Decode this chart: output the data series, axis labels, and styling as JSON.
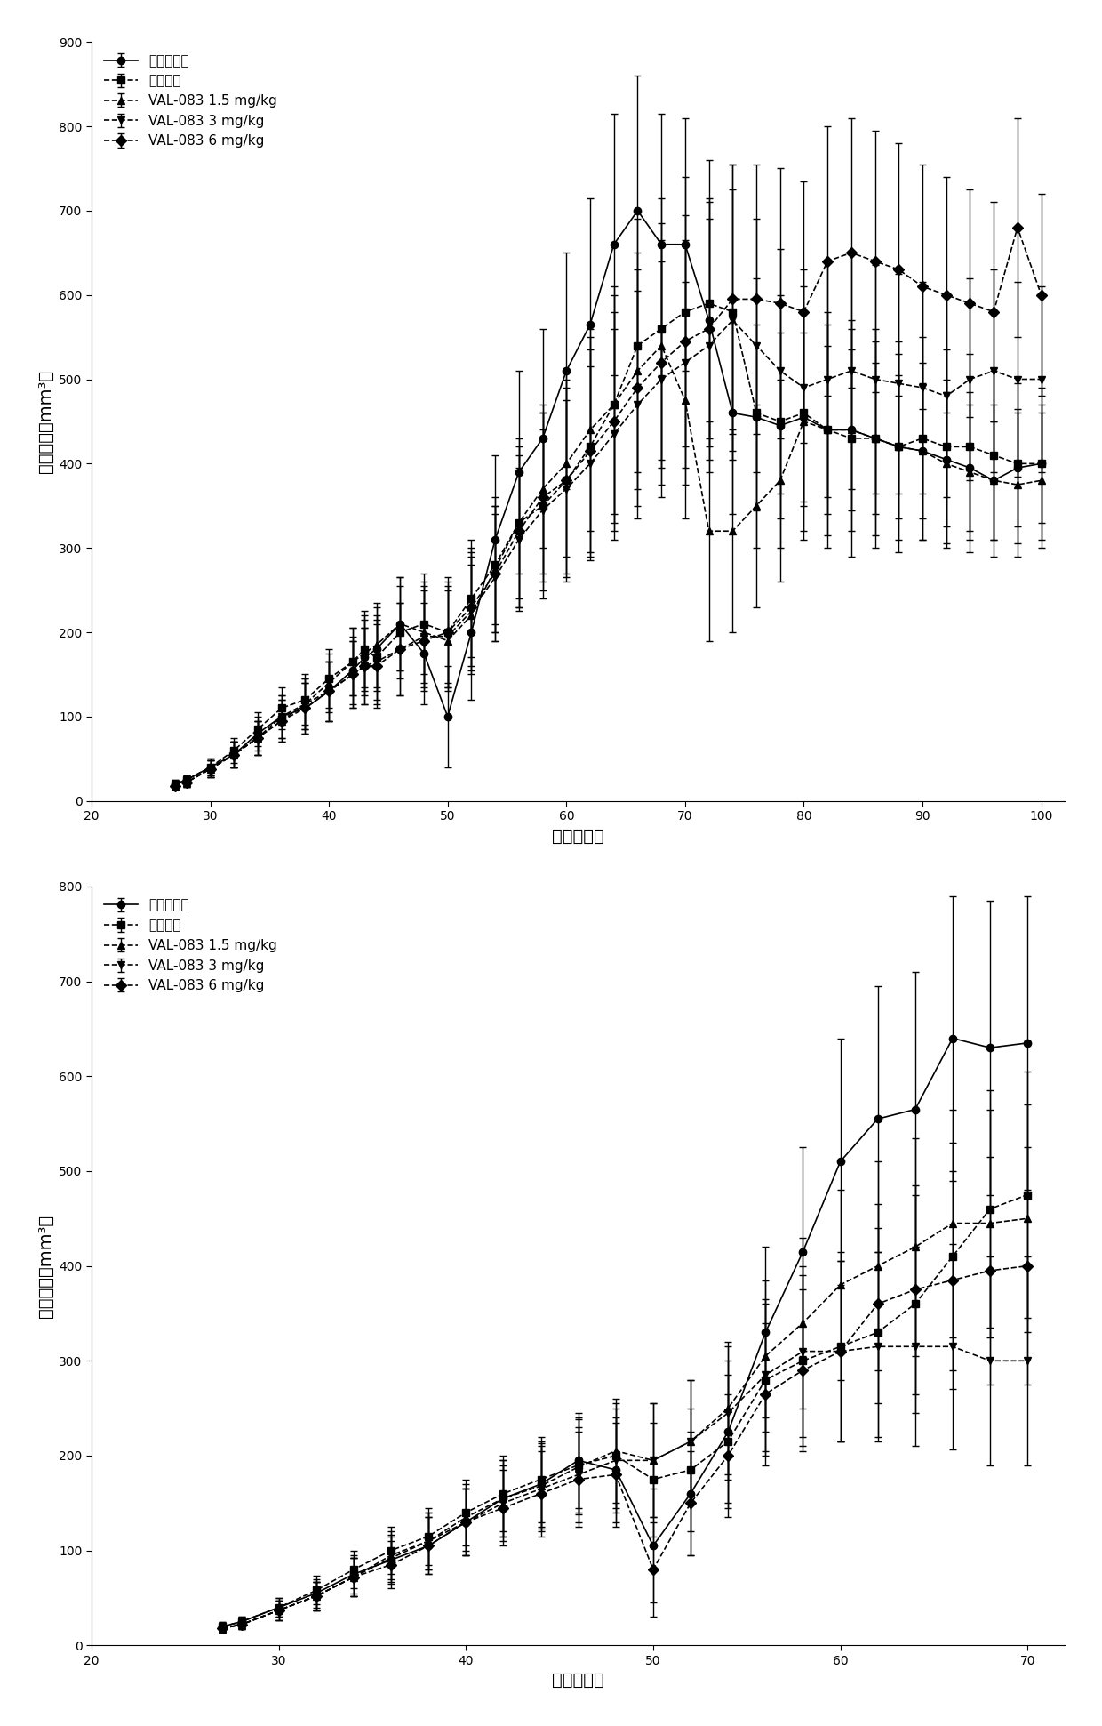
{
  "plot1": {
    "title": "",
    "xlabel": "接种后天数",
    "ylabel": "肿瘾体积（mm³）",
    "xlim": [
      20,
      102
    ],
    "ylim": [
      0,
      900
    ],
    "yticks": [
      0,
      100,
      200,
      300,
      400,
      500,
      600,
      700,
      800,
      900
    ],
    "xticks": [
      20,
      30,
      40,
      50,
      60,
      70,
      80,
      90,
      100
    ],
    "series": [
      {
        "label": "未处理对照",
        "marker": "o",
        "linestyle": "-",
        "color": "#000000",
        "x": [
          27,
          28,
          30,
          32,
          34,
          36,
          38,
          40,
          42,
          43,
          44,
          46,
          48,
          50,
          52,
          54,
          56,
          58,
          60,
          62,
          64,
          66,
          68,
          70,
          72,
          74,
          76,
          78,
          80,
          82,
          84,
          86,
          88,
          90,
          92,
          94,
          96,
          98,
          100
        ],
        "y": [
          20,
          25,
          40,
          55,
          80,
          100,
          110,
          130,
          155,
          170,
          180,
          210,
          175,
          100,
          200,
          310,
          390,
          430,
          510,
          565,
          660,
          700,
          660,
          660,
          570,
          460,
          455,
          445,
          455,
          440,
          440,
          430,
          420,
          415,
          405,
          395,
          380,
          395,
          400
        ],
        "yerr": [
          5,
          5,
          10,
          15,
          20,
          25,
          30,
          35,
          40,
          45,
          50,
          55,
          60,
          60,
          80,
          100,
          120,
          130,
          140,
          150,
          155,
          160,
          155,
          150,
          140,
          120,
          110,
          110,
          100,
          100,
          95,
          90,
          85,
          80,
          80,
          75,
          70,
          70,
          70
        ]
      },
      {
        "label": "顺铂对照",
        "marker": "s",
        "linestyle": "--",
        "color": "#000000",
        "x": [
          27,
          28,
          30,
          32,
          34,
          36,
          38,
          40,
          42,
          43,
          44,
          46,
          48,
          50,
          52,
          54,
          56,
          58,
          60,
          62,
          64,
          66,
          68,
          70,
          72,
          74,
          76,
          78,
          80,
          82,
          84,
          86,
          88,
          90,
          92,
          94,
          96,
          98,
          100
        ],
        "y": [
          20,
          25,
          40,
          60,
          85,
          110,
          120,
          145,
          165,
          180,
          170,
          200,
          210,
          200,
          240,
          280,
          330,
          350,
          380,
          420,
          470,
          540,
          560,
          580,
          590,
          580,
          460,
          450,
          460,
          440,
          430,
          430,
          420,
          430,
          420,
          420,
          410,
          400,
          400
        ],
        "yerr": [
          5,
          5,
          10,
          15,
          20,
          25,
          30,
          35,
          40,
          45,
          50,
          55,
          60,
          60,
          70,
          80,
          100,
          110,
          120,
          130,
          140,
          150,
          155,
          160,
          170,
          175,
          160,
          150,
          150,
          140,
          140,
          130,
          125,
          120,
          115,
          110,
          100,
          95,
          90
        ]
      },
      {
        "label": "VAL-083 1.5 mg/kg",
        "marker": "^",
        "linestyle": "--",
        "color": "#000000",
        "x": [
          27,
          28,
          30,
          32,
          34,
          36,
          38,
          40,
          42,
          43,
          44,
          46,
          48,
          50,
          52,
          54,
          56,
          58,
          60,
          62,
          64,
          66,
          68,
          70,
          72,
          74,
          76,
          78,
          80,
          82,
          84,
          86,
          88,
          90,
          92,
          94,
          96,
          98,
          100
        ],
        "y": [
          18,
          22,
          38,
          55,
          75,
          95,
          115,
          140,
          165,
          175,
          185,
          210,
          200,
          190,
          220,
          275,
          330,
          370,
          400,
          440,
          470,
          510,
          540,
          475,
          320,
          320,
          350,
          380,
          450,
          440,
          440,
          430,
          420,
          415,
          400,
          390,
          380,
          375,
          380
        ],
        "yerr": [
          5,
          5,
          10,
          15,
          20,
          25,
          30,
          35,
          40,
          45,
          50,
          55,
          60,
          60,
          70,
          75,
          90,
          100,
          110,
          120,
          130,
          140,
          145,
          140,
          130,
          120,
          120,
          120,
          130,
          125,
          120,
          115,
          110,
          105,
          100,
          95,
          90,
          85,
          80
        ]
      },
      {
        "label": "VAL-083 3 mg/kg",
        "marker": "v",
        "linestyle": "--",
        "color": "#000000",
        "x": [
          27,
          28,
          30,
          32,
          34,
          36,
          38,
          40,
          42,
          43,
          44,
          46,
          48,
          50,
          52,
          54,
          56,
          58,
          60,
          62,
          64,
          66,
          68,
          70,
          72,
          74,
          76,
          78,
          80,
          82,
          84,
          86,
          88,
          90,
          92,
          94,
          96,
          98,
          100
        ],
        "y": [
          18,
          22,
          38,
          55,
          75,
          100,
          115,
          130,
          150,
          160,
          165,
          180,
          195,
          195,
          225,
          265,
          310,
          345,
          370,
          400,
          435,
          470,
          500,
          520,
          540,
          570,
          540,
          510,
          490,
          500,
          510,
          500,
          495,
          490,
          480,
          500,
          510,
          500,
          500
        ],
        "yerr": [
          5,
          5,
          10,
          15,
          20,
          25,
          30,
          35,
          40,
          45,
          50,
          55,
          60,
          60,
          70,
          75,
          85,
          95,
          105,
          115,
          125,
          135,
          140,
          145,
          150,
          155,
          150,
          145,
          140,
          140,
          140,
          135,
          130,
          125,
          120,
          120,
          120,
          115,
          110
        ]
      },
      {
        "label": "VAL-083 6 mg/kg",
        "marker": "D",
        "linestyle": "--",
        "color": "#000000",
        "x": [
          27,
          28,
          30,
          32,
          34,
          36,
          38,
          40,
          42,
          43,
          44,
          46,
          48,
          50,
          52,
          54,
          56,
          58,
          60,
          62,
          64,
          66,
          68,
          70,
          72,
          74,
          76,
          78,
          80,
          82,
          84,
          86,
          88,
          90,
          92,
          94,
          96,
          98,
          100
        ],
        "y": [
          18,
          22,
          38,
          55,
          75,
          95,
          110,
          130,
          150,
          160,
          160,
          180,
          190,
          200,
          230,
          270,
          320,
          360,
          380,
          415,
          450,
          490,
          520,
          545,
          560,
          595,
          595,
          590,
          580,
          640,
          650,
          640,
          630,
          610,
          600,
          590,
          580,
          680,
          600
        ],
        "yerr": [
          5,
          5,
          10,
          15,
          20,
          25,
          30,
          35,
          40,
          45,
          50,
          55,
          60,
          65,
          70,
          80,
          90,
          100,
          110,
          120,
          130,
          140,
          145,
          150,
          155,
          160,
          160,
          160,
          155,
          160,
          160,
          155,
          150,
          145,
          140,
          135,
          130,
          130,
          120
        ]
      }
    ]
  },
  "plot2": {
    "title": "",
    "xlabel": "接种后天数",
    "ylabel": "肿瘾体积（mm³）",
    "xlim": [
      20,
      72
    ],
    "ylim": [
      0,
      800
    ],
    "yticks": [
      0,
      100,
      200,
      300,
      400,
      500,
      600,
      700,
      800
    ],
    "xticks": [
      20,
      30,
      40,
      50,
      60,
      70
    ],
    "series": [
      {
        "label": "未处理对照",
        "marker": "o",
        "linestyle": "-",
        "color": "#000000",
        "x": [
          27,
          28,
          30,
          32,
          34,
          36,
          38,
          40,
          42,
          44,
          46,
          48,
          50,
          52,
          54,
          56,
          58,
          60,
          62,
          64,
          66,
          68,
          70
        ],
        "y": [
          20,
          25,
          40,
          55,
          75,
          90,
          105,
          130,
          155,
          170,
          195,
          185,
          105,
          160,
          225,
          330,
          415,
          510,
          555,
          565,
          640,
          630,
          635
        ],
        "yerr": [
          5,
          5,
          10,
          15,
          20,
          25,
          30,
          35,
          40,
          45,
          50,
          55,
          60,
          65,
          75,
          90,
          110,
          130,
          140,
          145,
          150,
          155,
          155
        ]
      },
      {
        "label": "顺铂对照",
        "marker": "s",
        "linestyle": "-.",
        "color": "#000000",
        "x": [
          27,
          28,
          30,
          32,
          34,
          36,
          38,
          40,
          42,
          44,
          46,
          48,
          50,
          52,
          54,
          56,
          58,
          60,
          62,
          64,
          66,
          68,
          70
        ],
        "y": [
          20,
          25,
          40,
          58,
          80,
          100,
          115,
          140,
          160,
          175,
          190,
          200,
          175,
          185,
          215,
          280,
          300,
          315,
          330,
          360,
          410,
          460,
          475
        ],
        "yerr": [
          5,
          5,
          10,
          15,
          20,
          25,
          30,
          35,
          40,
          45,
          50,
          55,
          60,
          65,
          70,
          80,
          90,
          100,
          110,
          115,
          120,
          125,
          130
        ]
      },
      {
        "label": "VAL-083 1.5 mg/kg",
        "marker": "^",
        "linestyle": "-.",
        "color": "#000000",
        "x": [
          27,
          28,
          30,
          32,
          34,
          36,
          38,
          40,
          42,
          44,
          46,
          48,
          50,
          52,
          54,
          56,
          58,
          60,
          62,
          64,
          66,
          68,
          70
        ],
        "y": [
          18,
          22,
          37,
          52,
          72,
          92,
          110,
          135,
          155,
          168,
          188,
          205,
          195,
          215,
          250,
          305,
          340,
          380,
          400,
          420,
          445,
          445,
          450
        ],
        "yerr": [
          5,
          5,
          10,
          15,
          20,
          25,
          30,
          35,
          40,
          45,
          50,
          55,
          60,
          65,
          70,
          80,
          90,
          100,
          110,
          115,
          120,
          120,
          120
        ]
      },
      {
        "label": "VAL-083 3 mg/kg",
        "marker": "v",
        "linestyle": "-.",
        "color": "#000000",
        "x": [
          27,
          28,
          30,
          32,
          34,
          36,
          38,
          40,
          42,
          44,
          46,
          48,
          50,
          52,
          54,
          56,
          58,
          60,
          62,
          64,
          66,
          68,
          70
        ],
        "y": [
          18,
          22,
          37,
          52,
          72,
          95,
          110,
          130,
          150,
          165,
          180,
          195,
          195,
          215,
          245,
          285,
          310,
          310,
          315,
          315,
          315,
          300,
          300
        ],
        "yerr": [
          5,
          5,
          10,
          15,
          20,
          25,
          30,
          35,
          40,
          45,
          50,
          55,
          60,
          65,
          70,
          80,
          90,
          95,
          100,
          105,
          108,
          110,
          110
        ]
      },
      {
        "label": "VAL-083 6 mg/kg",
        "marker": "D",
        "linestyle": "-.",
        "color": "#000000",
        "x": [
          27,
          28,
          30,
          32,
          34,
          36,
          38,
          40,
          42,
          44,
          46,
          48,
          50,
          52,
          54,
          56,
          58,
          60,
          62,
          64,
          66,
          68,
          70
        ],
        "y": [
          18,
          22,
          37,
          52,
          72,
          85,
          105,
          130,
          145,
          160,
          175,
          180,
          80,
          150,
          200,
          265,
          290,
          310,
          360,
          375,
          385,
          395,
          400
        ],
        "yerr": [
          5,
          5,
          10,
          15,
          20,
          25,
          30,
          35,
          40,
          45,
          50,
          55,
          50,
          55,
          65,
          75,
          85,
          95,
          105,
          110,
          115,
          120,
          125
        ]
      }
    ]
  }
}
